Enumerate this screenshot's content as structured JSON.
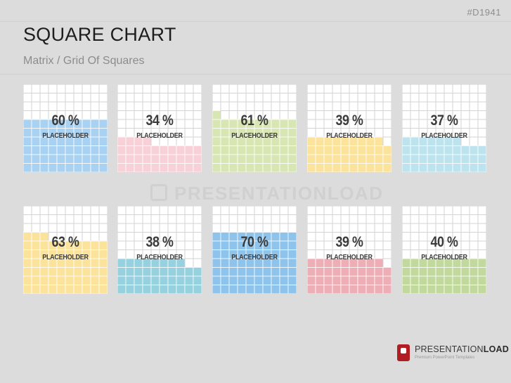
{
  "slide": {
    "id": "#D1941",
    "title": "SQUARE CHART",
    "subtitle": "Matrix / Grid Of Squares",
    "watermark": "PRESENTATIONLOAD"
  },
  "brand": {
    "name_light": "PRESENTATION",
    "name_bold": "LOAD",
    "tagline": "Premium PowerPoint Templates"
  },
  "chart_data": {
    "type": "waffle",
    "grid": {
      "columns": 10,
      "rows": 10
    },
    "empty_color": "#ffffff",
    "gridline_color": "#d3d3d3",
    "tiles": [
      {
        "value": 60,
        "value_label": "60 %",
        "label": "PLACEHOLDER",
        "color": "#a9d2f2"
      },
      {
        "value": 34,
        "value_label": "34 %",
        "label": "PLACEHOLDER",
        "color": "#f7d0d8"
      },
      {
        "value": 61,
        "value_label": "61 %",
        "label": "PLACEHOLDER",
        "color": "#d8e6b4"
      },
      {
        "value": 39,
        "value_label": "39 %",
        "label": "PLACEHOLDER",
        "color": "#fbe39c"
      },
      {
        "value": 37,
        "value_label": "37 %",
        "label": "PLACEHOLDER",
        "color": "#bde4ee"
      },
      {
        "value": 63,
        "value_label": "63 %",
        "label": "PLACEHOLDER",
        "color": "#fbe39c"
      },
      {
        "value": 38,
        "value_label": "38 %",
        "label": "PLACEHOLDER",
        "color": "#96d1e0"
      },
      {
        "value": 70,
        "value_label": "70 %",
        "label": "PLACEHOLDER",
        "color": "#8ec3ec"
      },
      {
        "value": 39,
        "value_label": "39 %",
        "label": "PLACEHOLDER",
        "color": "#eeaeb6"
      },
      {
        "value": 40,
        "value_label": "40 %",
        "label": "PLACEHOLDER",
        "color": "#c2d99e"
      }
    ]
  }
}
